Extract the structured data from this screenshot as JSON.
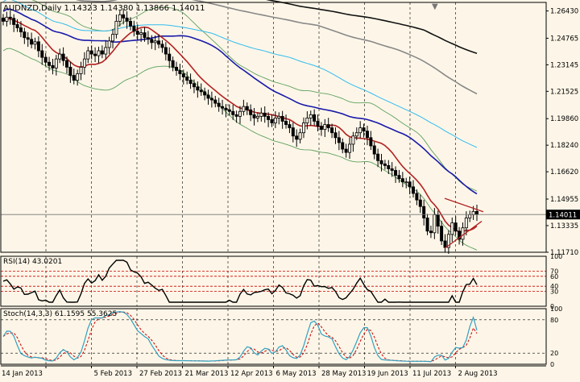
{
  "window": {
    "symbol_line": "AUDNZD,Daily  1.14323 1.14380 1.13866 1.14011",
    "sell_marker": "▼"
  },
  "colors": {
    "background": "#fdf6e8",
    "border": "#000000",
    "grid": "#000000",
    "candle": "#000000",
    "ma_fast": "#b22222",
    "ma_blue": "#1a1aaa",
    "ma_cyan": "#33bbee",
    "ma_gray": "#888888",
    "ma_black": "#111111",
    "bands": "#5fa05f",
    "rsi_line": "#000000",
    "level_lines": "#cc0000",
    "stoch_main": "#33a0c0",
    "stoch_signal": "#cc0000",
    "price_tag_bg": "#000000",
    "price_tag_fg": "#ffffff",
    "trendline": "#b22222"
  },
  "price_panel": {
    "y_ticks": [
      "1.26430",
      "1.24765",
      "1.23145",
      "1.21525",
      "1.19860",
      "1.18240",
      "1.16620",
      "1.14955",
      "1.13335",
      "1.11710"
    ],
    "current_price": "1.14011"
  },
  "rsi_panel": {
    "label": "RSI(14) 43.0201",
    "y_ticks": [
      "100",
      "70",
      "60",
      "40",
      "30",
      "0"
    ]
  },
  "stoch_panel": {
    "label": "Stoch(14,3,3) 61.1595 55.3625",
    "y_ticks": [
      "100",
      "80",
      "20",
      "0"
    ]
  },
  "x_axis": {
    "labels": [
      "14 Jan 2013",
      "5 Feb 2013",
      "27 Feb 2013",
      "21 Mar 2013",
      "12 Apr 2013",
      "6 May 2013",
      "28 May 2013",
      "19 Jun 2013",
      "11 Jul 2013",
      "2 Aug 2013"
    ]
  },
  "chart_data": {
    "type": "candlestick",
    "title": "AUDNZD,Daily",
    "ohlc_last": {
      "open": 1.14323,
      "high": 1.1438,
      "low": 1.13866,
      "close": 1.14011
    },
    "ylim": [
      1.1171,
      1.2695
    ],
    "close_series": [
      1.258,
      1.2605,
      1.2598,
      1.256,
      1.254,
      1.2515,
      1.248,
      1.247,
      1.244,
      1.2455,
      1.24,
      1.236,
      1.233,
      1.231,
      1.2295,
      1.235,
      1.238,
      1.234,
      1.23,
      1.225,
      1.222,
      1.226,
      1.23,
      1.235,
      1.24,
      1.238,
      1.237,
      1.24,
      1.238,
      1.242,
      1.246,
      1.25,
      1.258,
      1.262,
      1.26,
      1.258,
      1.255,
      1.252,
      1.25,
      1.251,
      1.248,
      1.247,
      1.245,
      1.246,
      1.244,
      1.242,
      1.238,
      1.234,
      1.23,
      1.228,
      1.226,
      1.224,
      1.222,
      1.22,
      1.218,
      1.216,
      1.215,
      1.213,
      1.211,
      1.21,
      1.208,
      1.206,
      1.205,
      1.204,
      1.203,
      1.201,
      1.2,
      1.203,
      1.206,
      1.204,
      1.201,
      1.199,
      1.2,
      1.202,
      1.2,
      1.198,
      1.196,
      1.199,
      1.2,
      1.197,
      1.195,
      1.193,
      1.188,
      1.186,
      1.19,
      1.196,
      1.199,
      1.201,
      1.197,
      1.194,
      1.192,
      1.195,
      1.193,
      1.19,
      1.187,
      1.184,
      1.18,
      1.178,
      1.183,
      1.188,
      1.19,
      1.193,
      1.191,
      1.187,
      1.182,
      1.177,
      1.173,
      1.171,
      1.17,
      1.168,
      1.167,
      1.164,
      1.162,
      1.16,
      1.16,
      1.157,
      1.153,
      1.149,
      1.145,
      1.138,
      1.13,
      1.129,
      1.14,
      1.133,
      1.124,
      1.12,
      1.128,
      1.135,
      1.13,
      1.125,
      1.132,
      1.138,
      1.14,
      1.142,
      1.1401
    ],
    "indicators": {
      "rsi": {
        "period": 14,
        "value": 43.0201,
        "levels": [
          70,
          60,
          40,
          30
        ]
      },
      "stochastic": {
        "params": "14,3,3",
        "main": 61.1595,
        "signal": 55.3625,
        "levels": [
          80,
          20
        ]
      }
    }
  }
}
